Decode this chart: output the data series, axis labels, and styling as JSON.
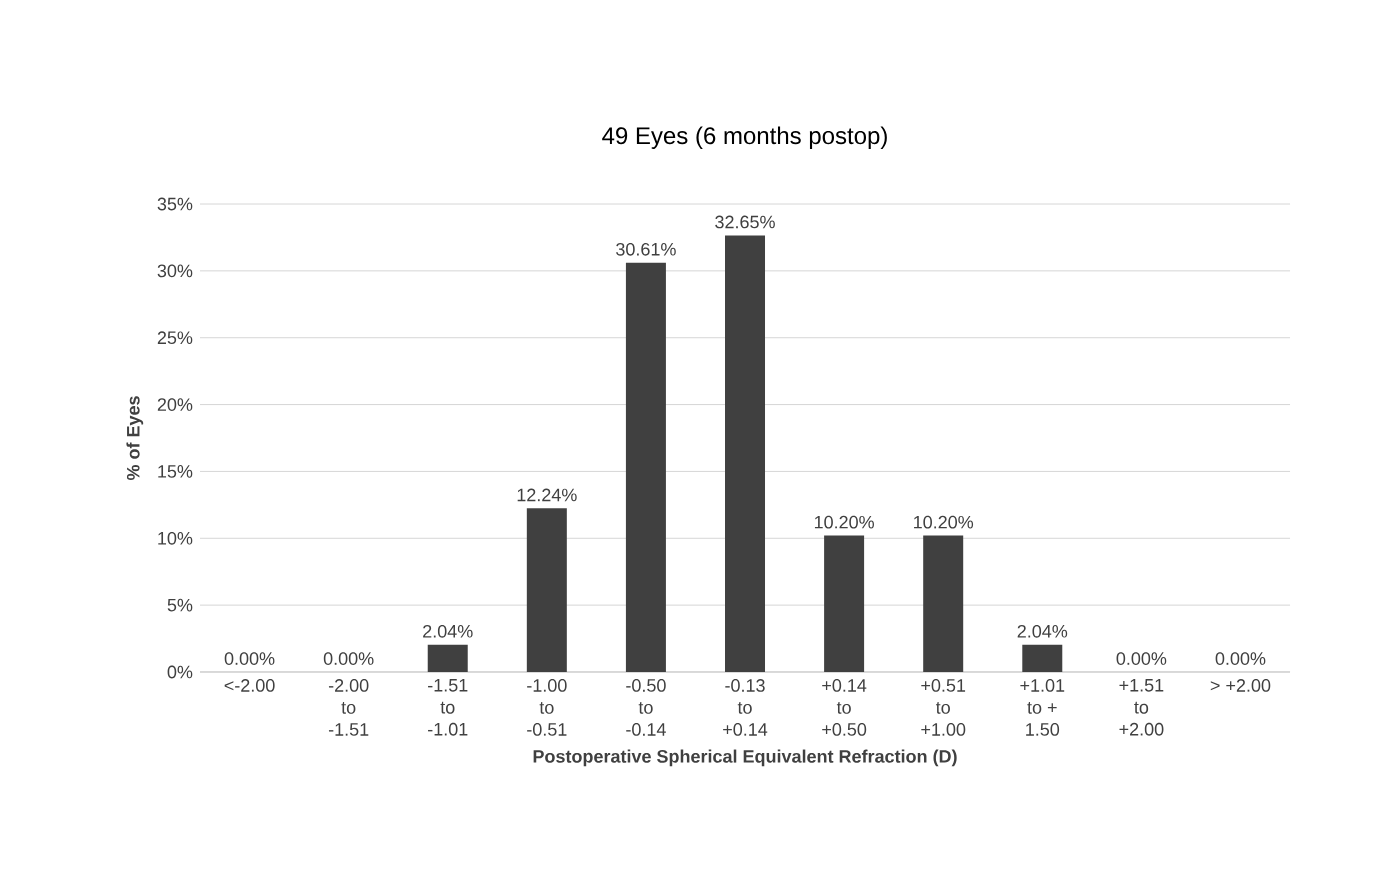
{
  "chart_data": {
    "type": "bar",
    "title": "49 Eyes (6 months postop)",
    "xlabel": "Postoperative Spherical Equivalent Refraction (D)",
    "ylabel": "% of Eyes",
    "categories": [
      "<-2.00",
      "-2.00 to -1.51",
      "-1.51 to -1.01",
      "-1.00 to -0.51",
      "-0.50 to -0.14",
      "-0.13 to +0.14",
      "+0.14 to +0.50",
      "+0.51 to +1.00",
      "+1.01 to + 1.50",
      "+1.51 to +2.00",
      "> +2.00"
    ],
    "values": [
      0,
      0,
      2.04,
      12.24,
      30.61,
      32.65,
      10.2,
      10.2,
      2.04,
      0,
      0
    ],
    "value_labels": [
      "0.00%",
      "0.00%",
      "2.04%",
      "12.24%",
      "30.61%",
      "32.65%",
      "10.20%",
      "10.20%",
      "2.04%",
      "0.00%",
      "0.00%"
    ],
    "color": "#404040",
    "ylim": [
      0,
      35
    ],
    "yticks": [
      {
        "value": 0,
        "label": "0%"
      },
      {
        "value": 5,
        "label": "5%"
      },
      {
        "value": 10,
        "label": "10%"
      },
      {
        "value": 15,
        "label": "15%"
      },
      {
        "value": 20,
        "label": "20%"
      },
      {
        "value": 25,
        "label": "25%"
      },
      {
        "value": 30,
        "label": "30%"
      },
      {
        "value": 35,
        "label": "35%"
      }
    ],
    "grid": "y"
  }
}
